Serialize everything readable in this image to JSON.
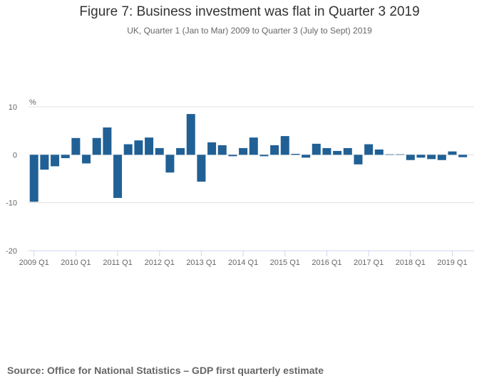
{
  "chart_data": {
    "type": "bar",
    "title": "Figure 7: Business investment was flat in Quarter 3 2019",
    "subtitle": "UK, Quarter 1 (Jan to Mar) 2009 to Quarter 3 (July to Sept) 2019",
    "ylabel": "%",
    "xlabel": "",
    "ylim": [
      -20,
      10
    ],
    "yticks": [
      10,
      0,
      -10,
      -20
    ],
    "grid": true,
    "color": "#206095",
    "xtick_labels": [
      "2009 Q1",
      "2010 Q1",
      "2011 Q1",
      "2012 Q1",
      "2013 Q1",
      "2014 Q1",
      "2015 Q1",
      "2016 Q1",
      "2017 Q1",
      "2018 Q1",
      "2019 Q1"
    ],
    "categories": [
      "2009 Q1",
      "2009 Q2",
      "2009 Q3",
      "2009 Q4",
      "2010 Q1",
      "2010 Q2",
      "2010 Q3",
      "2010 Q4",
      "2011 Q1",
      "2011 Q2",
      "2011 Q3",
      "2011 Q4",
      "2012 Q1",
      "2012 Q2",
      "2012 Q3",
      "2012 Q4",
      "2013 Q1",
      "2013 Q2",
      "2013 Q3",
      "2013 Q4",
      "2014 Q1",
      "2014 Q2",
      "2014 Q3",
      "2014 Q4",
      "2015 Q1",
      "2015 Q2",
      "2015 Q3",
      "2015 Q4",
      "2016 Q1",
      "2016 Q2",
      "2016 Q3",
      "2016 Q4",
      "2017 Q1",
      "2017 Q2",
      "2017 Q3",
      "2017 Q4",
      "2018 Q1",
      "2018 Q2",
      "2018 Q3",
      "2018 Q4",
      "2019 Q1",
      "2019 Q2",
      "2019 Q3"
    ],
    "values": [
      -9.8,
      -3.1,
      -2.4,
      -0.7,
      3.5,
      -1.8,
      3.5,
      5.7,
      -9.0,
      2.2,
      3.0,
      3.6,
      1.4,
      -3.7,
      1.4,
      8.5,
      -5.6,
      2.6,
      2.0,
      -0.3,
      1.4,
      3.6,
      -0.3,
      2.0,
      3.9,
      0.2,
      -0.6,
      2.3,
      1.4,
      0.8,
      1.4,
      -2.0,
      2.2,
      1.1,
      0.1,
      0.1,
      -1.1,
      -0.6,
      -0.9,
      -1.1,
      0.7,
      -0.5,
      0.0
    ]
  },
  "source": "Source: Office for National Statistics – GDP first quarterly estimate"
}
